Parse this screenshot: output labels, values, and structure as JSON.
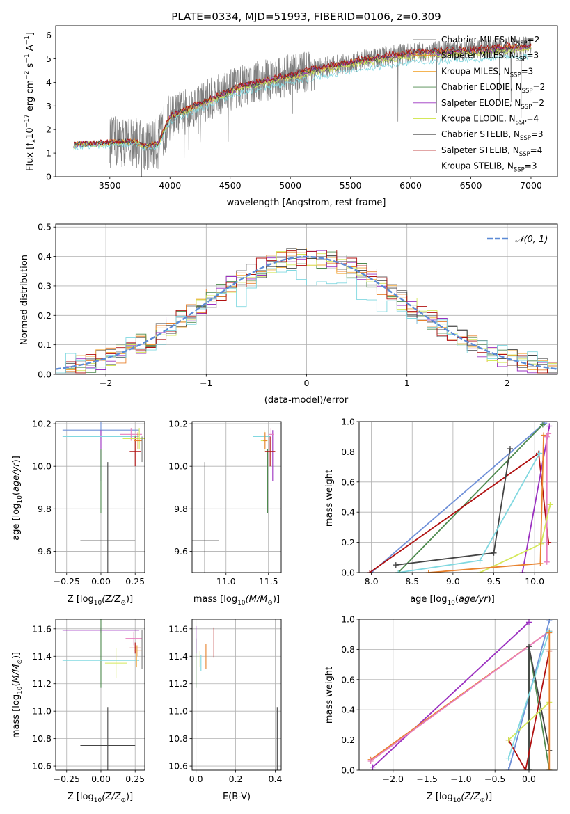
{
  "colors": {
    "chabrier_miles": "#808080",
    "salpeter_miles": "#e8822e",
    "kroupa_miles": "#f2a93b",
    "chabrier_elodie": "#4e8a4e",
    "salpeter_elodie": "#9b30c0",
    "kroupa_elodie": "#d4e85a",
    "chabrier_stelib": "#444444",
    "salpeter_stelib": "#b01010",
    "kroupa_stelib": "#80d8e0",
    "normal_curve": "#5b8ad6",
    "pink": "#e87fbf",
    "steelblue": "#6f90d8",
    "data": "#7f7f7f"
  },
  "chart_data": [
    {
      "id": "spectrum",
      "type": "line",
      "title": "PLATE=0334, MJD=51993, FIBERID=0106, z=0.309",
      "xlabel": "wavelength [Angstrom, rest frame]",
      "ylabel": "Flux [f_λ10^-17 erg cm^-2 s^-1 A^-1]",
      "xlim": [
        3050,
        7220
      ],
      "ylim": [
        0,
        6.4
      ],
      "xticks": [
        "3500",
        "4000",
        "4500",
        "5000",
        "5500",
        "6000",
        "6500",
        "7000"
      ],
      "yticks": [
        "0",
        "1",
        "2",
        "3",
        "4",
        "5",
        "6"
      ],
      "legend_position": "top-right",
      "continuum_anchors": {
        "x": [
          3200,
          3300,
          3500,
          3700,
          3800,
          3900,
          4000,
          4200,
          4400,
          4600,
          4800,
          5000,
          5200,
          5400,
          5600,
          5800,
          6000,
          6200,
          6400,
          6600,
          6800,
          7000
        ],
        "y": [
          1.35,
          1.4,
          1.45,
          1.5,
          1.3,
          1.4,
          2.55,
          3.0,
          3.45,
          3.85,
          4.1,
          4.3,
          4.55,
          4.75,
          4.95,
          5.1,
          5.25,
          5.3,
          5.35,
          5.4,
          5.5,
          5.55
        ]
      },
      "series": [
        {
          "name": "Chabrier MILES, N_SSP=2",
          "label_base": "Chabrier MILES, N",
          "sub": "SSP",
          "label_tail": "=2",
          "color_key": "chabrier_miles",
          "scale": 1.0
        },
        {
          "name": "Salpeter MILES, N_SSP=3",
          "label_base": "Salpeter MILES, N",
          "sub": "SSP",
          "label_tail": "=3",
          "color_key": "salpeter_miles",
          "scale": 1.0
        },
        {
          "name": "Kroupa MILES, N_SSP=3",
          "label_base": "Kroupa MILES, N",
          "sub": "SSP",
          "label_tail": "=3",
          "color_key": "kroupa_miles",
          "scale": 0.99
        },
        {
          "name": "Chabrier ELODIE, N_SSP=2",
          "label_base": "Chabrier ELODIE, N",
          "sub": "SSP",
          "label_tail": "=2",
          "color_key": "chabrier_elodie",
          "scale": 0.98
        },
        {
          "name": "Salpeter ELODIE, N_SSP=2",
          "label_base": "Salpeter ELODIE, N",
          "sub": "SSP",
          "label_tail": "=2",
          "color_key": "salpeter_elodie",
          "scale": 0.99
        },
        {
          "name": "Kroupa ELODIE, N_SSP=4",
          "label_base": "Kroupa ELODIE, N",
          "sub": "SSP",
          "label_tail": "=4",
          "color_key": "kroupa_elodie",
          "scale": 0.97
        },
        {
          "name": "Chabrier STELIB, N_SSP=3",
          "label_base": "Chabrier STELIB, N",
          "sub": "SSP",
          "label_tail": "=3",
          "color_key": "chabrier_stelib",
          "scale": 1.0
        },
        {
          "name": "Salpeter STELIB, N_SSP=4",
          "label_base": "Salpeter STELIB, N",
          "sub": "SSP",
          "label_tail": "=4",
          "color_key": "salpeter_stelib",
          "scale": 1.01
        },
        {
          "name": "Kroupa STELIB, N_SSP=3",
          "label_base": "Kroupa STELIB, N",
          "sub": "SSP",
          "label_tail": "=3",
          "color_key": "kroupa_stelib",
          "scale": 0.92
        }
      ]
    },
    {
      "id": "residuals",
      "type": "line",
      "xlabel": "(data-model)/error",
      "ylabel": "Normed distribution",
      "xlim": [
        -2.5,
        2.5
      ],
      "ylim": [
        0,
        0.51
      ],
      "xticks": [
        "−2",
        "−1",
        "0",
        "1",
        "2"
      ],
      "yticks": [
        "0.0",
        "0.1",
        "0.2",
        "0.3",
        "0.4",
        "0.5"
      ],
      "grid": true,
      "legend_position": "top-right",
      "legend": "𝒩(0, 1)",
      "bin_width": 0.1
    },
    {
      "id": "age_vs_Z",
      "type": "scatter",
      "xlabel_base": "Z [log",
      "xlabel_sub": "10",
      "xlabel_tail": "(Z/Z",
      "xlabel_sub2": "⊙",
      "xlabel_end": ")]",
      "ylabel": "age  [log10(age/yr)]",
      "xlim": [
        -0.33,
        0.32
      ],
      "ylim": [
        9.5,
        10.21
      ],
      "xticks": [
        "−0.25",
        "0.00",
        "0.25"
      ],
      "yticks": [
        "9.6",
        "9.8",
        "10.0",
        "10.2"
      ],
      "grid": true
    },
    {
      "id": "age_vs_mass",
      "type": "scatter",
      "xlabel_base": "mass [log",
      "xlabel_sub": "10",
      "xlabel_tail": "(M/M",
      "xlabel_sub2": "⊙",
      "xlabel_end": ")]",
      "xlim": [
        10.6,
        11.65
      ],
      "ylim": [
        9.5,
        10.21
      ],
      "xticks": [
        "11.0",
        "11.5"
      ],
      "yticks": [
        "9.6",
        "9.8",
        "10.0",
        "10.2"
      ],
      "grid": true
    },
    {
      "id": "weight_vs_age",
      "type": "line",
      "xlabel": "age  [log10(age/yr)]",
      "ylabel": "mass weight",
      "xlim": [
        7.85,
        10.28
      ],
      "ylim": [
        0,
        1.0
      ],
      "xticks": [
        "8.0",
        "8.5",
        "9.0",
        "9.5",
        "10.0"
      ],
      "yticks": [
        "0.0",
        "0.2",
        "0.4",
        "0.6",
        "0.8",
        "1.0"
      ],
      "grid": true
    },
    {
      "id": "mass_vs_Z",
      "type": "scatter",
      "xlabel_base": "Z [log",
      "xlabel_sub": "10",
      "xlabel_tail": "(Z/Z",
      "xlabel_sub2": "⊙",
      "xlabel_end": ")]",
      "ylabel": "mass [log10(M/M⊙)]",
      "xlim": [
        -0.33,
        0.32
      ],
      "ylim": [
        10.57,
        11.67
      ],
      "xticks": [
        "−0.25",
        "0.00",
        "0.25"
      ],
      "yticks": [
        "10.6",
        "10.8",
        "11.0",
        "11.2",
        "11.4",
        "11.6"
      ],
      "grid": true
    },
    {
      "id": "mass_vs_ebv",
      "type": "scatter",
      "xlabel": "E(B-V)",
      "xlim": [
        -0.02,
        0.43
      ],
      "ylim": [
        10.57,
        11.67
      ],
      "xticks": [
        "0.0",
        "0.2",
        "0.4"
      ],
      "yticks": [
        "10.6",
        "10.8",
        "11.0",
        "11.2",
        "11.4",
        "11.6"
      ],
      "grid": true
    },
    {
      "id": "weight_vs_Z",
      "type": "line",
      "xlabel_base": "Z [log",
      "xlabel_sub": "10",
      "xlabel_tail": "(Z/Z",
      "xlabel_sub2": "⊙",
      "xlabel_end": ")]",
      "ylabel": "mass weight",
      "xlim": [
        -2.5,
        0.42
      ],
      "ylim": [
        0,
        1.0
      ],
      "xticks": [
        "−2.0",
        "−1.5",
        "−1.0",
        "−0.5",
        "0.0"
      ],
      "yticks": [
        "0.0",
        "0.2",
        "0.4",
        "0.6",
        "0.8",
        "1.0"
      ],
      "grid": true
    }
  ],
  "populations": {
    "age_vs_Z": [
      {
        "c": "steelblue",
        "x": 0.0,
        "y": 10.17,
        "xe": 0.28,
        "ye": 0.04
      },
      {
        "c": "salpeter_elodie",
        "x": 0.0,
        "y": 10.05,
        "xe": 0.0,
        "ye": 0.12
      },
      {
        "c": "chabrier_elodie",
        "x": 0.0,
        "y": 9.93,
        "xe": 0.0,
        "ye": 0.15
      },
      {
        "c": "kroupa_stelib",
        "x": 0.0,
        "y": 10.14,
        "xe": 0.28,
        "ye": 0.0
      },
      {
        "c": "chabrier_stelib",
        "x": 0.05,
        "y": 9.65,
        "xe": 0.2,
        "ye": 0.37
      },
      {
        "c": "pink",
        "x": 0.22,
        "y": 10.15,
        "xe": 0.08,
        "ye": 0.03
      },
      {
        "c": "salpeter_stelib",
        "x": 0.25,
        "y": 10.07,
        "xe": 0.04,
        "ye": 0.07
      },
      {
        "c": "kroupa_elodie",
        "x": 0.28,
        "y": 10.13,
        "xe": 0.12,
        "ye": 0.05
      },
      {
        "c": "salpeter_miles",
        "x": 0.27,
        "y": 10.12,
        "xe": 0.03,
        "ye": 0.04
      },
      {
        "c": "chabrier_miles",
        "x": 0.3,
        "y": 10.08,
        "xe": 0.0,
        "ye": 0.06
      }
    ],
    "age_vs_mass": [
      {
        "c": "chabrier_stelib",
        "x": 10.75,
        "y": 9.65,
        "xe": 0.17,
        "ye": 0.37
      },
      {
        "c": "chabrier_elodie",
        "x": 11.49,
        "y": 9.93,
        "xe": 0.0,
        "ye": 0.15
      },
      {
        "c": "kroupa_stelib",
        "x": 11.42,
        "y": 10.14,
        "xe": 0.1,
        "ye": 0.0
      },
      {
        "c": "salpeter_elodie",
        "x": 11.55,
        "y": 10.05,
        "xe": 0.0,
        "ye": 0.12
      },
      {
        "c": "salpeter_stelib",
        "x": 11.52,
        "y": 10.07,
        "xe": 0.06,
        "ye": 0.07
      },
      {
        "c": "pink",
        "x": 11.53,
        "y": 10.15,
        "xe": 0.03,
        "ye": 0.03
      },
      {
        "c": "kroupa_elodie",
        "x": 11.45,
        "y": 10.12,
        "xe": 0.04,
        "ye": 0.05
      },
      {
        "c": "salpeter_miles",
        "x": 11.46,
        "y": 10.12,
        "xe": 0.02,
        "ye": 0.04
      }
    ],
    "mass_vs_Z": [
      {
        "c": "salpeter_elodie",
        "x": 0.0,
        "y": 11.59,
        "xe": 0.28,
        "ye": 0.02
      },
      {
        "c": "chabrier_elodie",
        "x": 0.0,
        "y": 11.49,
        "xe": 0.28,
        "ye": 0.32
      },
      {
        "c": "kroupa_stelib",
        "x": 0.0,
        "y": 11.37,
        "xe": 0.28,
        "ye": 0.0
      },
      {
        "c": "chabrier_stelib",
        "x": 0.05,
        "y": 10.75,
        "xe": 0.2,
        "ye": 0.28
      },
      {
        "c": "kroupa_elodie",
        "x": 0.11,
        "y": 11.35,
        "xe": 0.08,
        "ye": 0.11
      },
      {
        "c": "pink",
        "x": 0.24,
        "y": 11.53,
        "xe": 0.06,
        "ye": 0.05
      },
      {
        "c": "salpeter_stelib",
        "x": 0.25,
        "y": 11.46,
        "xe": 0.04,
        "ye": 0.04
      },
      {
        "c": "salpeter_miles",
        "x": 0.27,
        "y": 11.44,
        "xe": 0.03,
        "ye": 0.04
      },
      {
        "c": "chabrier_miles",
        "x": 0.3,
        "y": 11.45,
        "xe": 0.0,
        "ye": 0.14
      },
      {
        "c": "kroupa_miles",
        "x": 0.26,
        "y": 11.4,
        "xe": 0.0,
        "ye": 0.08
      }
    ],
    "mass_vs_ebv": [
      {
        "c": "chabrier_elodie",
        "x": 0.0,
        "y": 11.35,
        "xe": 0.0,
        "ye": 0.18
      },
      {
        "c": "salpeter_elodie",
        "x": 0.0,
        "y": 11.52,
        "xe": 0.0,
        "ye": 0.1
      },
      {
        "c": "kroupa_elodie",
        "x": 0.02,
        "y": 11.38,
        "xe": 0.0,
        "ye": 0.06
      },
      {
        "c": "kroupa_stelib",
        "x": 0.025,
        "y": 11.35,
        "xe": 0.0,
        "ye": 0.06
      },
      {
        "c": "salpeter_miles",
        "x": 0.05,
        "y": 11.4,
        "xe": 0.0,
        "ye": 0.09
      },
      {
        "c": "salpeter_stelib",
        "x": 0.09,
        "y": 11.5,
        "xe": 0.0,
        "ye": 0.11
      },
      {
        "c": "chabrier_stelib",
        "x": 0.41,
        "y": 10.75,
        "xe": 0.0,
        "ye": 0.28
      }
    ],
    "weight_vs_age": [
      {
        "c": "steelblue",
        "pts": [
          [
            8.0,
            0.0
          ],
          [
            10.12,
            0.99
          ]
        ]
      },
      {
        "c": "chabrier_elodie",
        "pts": [
          [
            8.33,
            0.0
          ],
          [
            10.1,
            0.98
          ]
        ]
      },
      {
        "c": "salpeter_stelib",
        "pts": [
          [
            7.98,
            0.0
          ],
          [
            10.05,
            0.79
          ],
          [
            10.17,
            0.2
          ]
        ]
      },
      {
        "c": "chabrier_stelib",
        "pts": [
          [
            8.3,
            0.05
          ],
          [
            9.5,
            0.13
          ],
          [
            9.7,
            0.82
          ]
        ]
      },
      {
        "c": "kroupa_stelib",
        "pts": [
          [
            8.33,
            0.0
          ],
          [
            9.33,
            0.08
          ],
          [
            10.06,
            0.79
          ]
        ]
      },
      {
        "c": "salpeter_elodie",
        "pts": [
          [
            9.85,
            0.0
          ],
          [
            10.18,
            0.97
          ]
        ]
      },
      {
        "c": "pink",
        "pts": [
          [
            10.15,
            0.07
          ],
          [
            10.15,
            0.9
          ],
          [
            10.17,
            0.92
          ]
        ]
      },
      {
        "c": "kroupa_elodie",
        "pts": [
          [
            9.33,
            0.0
          ],
          [
            10.08,
            0.19
          ],
          [
            10.19,
            0.45
          ]
        ]
      },
      {
        "c": "salpeter_miles",
        "pts": [
          [
            8.7,
            0.0
          ],
          [
            10.07,
            0.06
          ],
          [
            10.11,
            0.91
          ]
        ]
      }
    ],
    "weight_vs_Z": [
      {
        "c": "salpeter_elodie",
        "pts": [
          [
            -2.3,
            0.02
          ],
          [
            0.0,
            0.98
          ]
        ]
      },
      {
        "c": "salpeter_miles",
        "pts": [
          [
            -2.33,
            0.07
          ],
          [
            0.3,
            0.92
          ]
        ]
      },
      {
        "c": "pink",
        "pts": [
          [
            -2.33,
            0.06
          ],
          [
            0.3,
            0.92
          ]
        ]
      },
      {
        "c": "steelblue",
        "pts": [
          [
            -0.3,
            0.0
          ],
          [
            0.3,
            0.99
          ]
        ]
      },
      {
        "c": "chabrier_elodie",
        "pts": [
          [
            0.0,
            0.0
          ],
          [
            0.0,
            0.82
          ],
          [
            0.3,
            0.0
          ]
        ]
      },
      {
        "c": "chabrier_stelib",
        "pts": [
          [
            0.0,
            0.0
          ],
          [
            0.0,
            0.82
          ],
          [
            0.3,
            0.13
          ]
        ]
      },
      {
        "c": "salpeter_stelib",
        "pts": [
          [
            -0.3,
            0.2
          ],
          [
            -0.05,
            0.0
          ],
          [
            0.3,
            0.79
          ]
        ]
      },
      {
        "c": "kroupa_elodie",
        "pts": [
          [
            -0.3,
            0.2
          ],
          [
            0.3,
            0.45
          ]
        ]
      },
      {
        "c": "kroupa_stelib",
        "pts": [
          [
            -0.3,
            0.08
          ],
          [
            0.3,
            0.92
          ]
        ]
      },
      {
        "c": "salpeter_miles",
        "pts": [
          [
            0.3,
            0.0
          ],
          [
            0.3,
            0.91
          ]
        ]
      }
    ]
  }
}
